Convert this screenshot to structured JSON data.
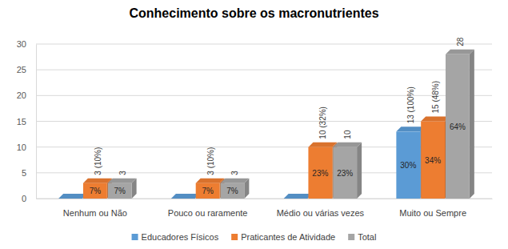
{
  "chart_data": {
    "type": "bar",
    "title": "Conhecimento sobre os macronutrientes",
    "categories": [
      "Nenhum ou Não",
      "Pouco ou raramente",
      "Médio ou várias vezes",
      "Muito ou Sempre"
    ],
    "series": [
      {
        "name": "Educadores Físicos",
        "color": "#5b9bd5",
        "values": [
          0,
          0,
          0,
          13
        ],
        "value_labels": [
          null,
          null,
          null,
          "13 (100%)"
        ],
        "percent_labels": [
          null,
          null,
          null,
          "30%"
        ]
      },
      {
        "name": "Praticantes de Atividade",
        "color": "#ed7d31",
        "values": [
          3,
          3,
          10,
          15
        ],
        "value_labels": [
          "3 (10%)",
          "3 (10%)",
          "10 (32%)",
          "15 (48%)"
        ],
        "percent_labels": [
          "7%",
          "7%",
          "23%",
          "34%"
        ]
      },
      {
        "name": "Total",
        "color": "#a5a5a5",
        "values": [
          3,
          3,
          10,
          28
        ],
        "percent_labels": [
          "7%",
          "7%",
          "23%",
          "64%"
        ]
      }
    ],
    "ylim": [
      0,
      30
    ],
    "yticks": [
      0,
      5,
      10,
      15,
      20,
      25,
      30
    ],
    "grid": true,
    "legend": "bottom",
    "data_labels": true
  }
}
